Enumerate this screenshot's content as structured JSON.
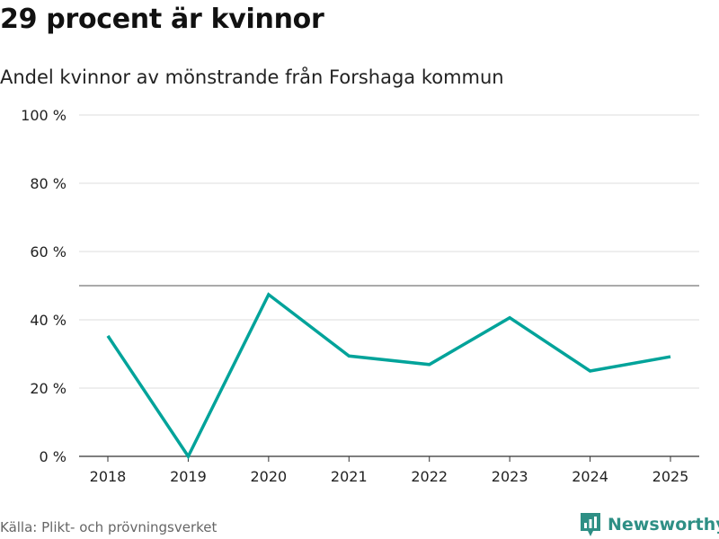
{
  "header": {
    "title": "29 procent är kvinnor",
    "subtitle": "Andel kvinnor av mönstrande från Forshaga kommun"
  },
  "footer": {
    "source": "Källa: Plikt- och prövningsverket",
    "brand": "Newsworthy"
  },
  "colors": {
    "line": "#00a39a",
    "grid": "#dddddd",
    "reference_line": "#777777",
    "brand": "#2e8f85"
  },
  "chart_data": {
    "type": "line",
    "title": "29 procent är kvinnor",
    "subtitle": "Andel kvinnor av mönstrande från Forshaga kommun",
    "xlabel": "",
    "ylabel": "",
    "categories": [
      "2018",
      "2019",
      "2020",
      "2021",
      "2022",
      "2023",
      "2024",
      "2025"
    ],
    "series": [
      {
        "name": "Andel kvinnor",
        "values": [
          35.3,
          0,
          47.4,
          29.4,
          26.9,
          40.6,
          25.0,
          29.2
        ]
      }
    ],
    "ylim": [
      0,
      100
    ],
    "yticks": [
      0,
      20,
      40,
      60,
      80,
      100
    ],
    "ytick_labels": [
      "0 %",
      "20 %",
      "40 %",
      "60 %",
      "80 %",
      "100 %"
    ],
    "reference_line": 50,
    "grid": true
  }
}
